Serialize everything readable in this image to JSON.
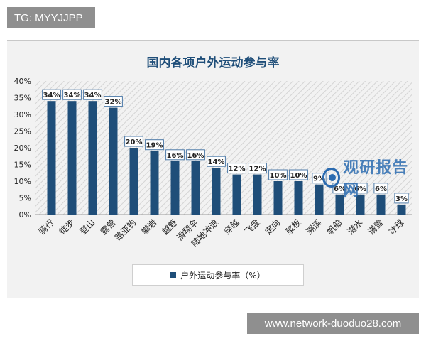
{
  "tag": "TG: MYYJJPP",
  "watermark": "www.network-duoduo28.com",
  "logo_text": "观研报告网",
  "chart_data": {
    "type": "bar",
    "title": "国内各项户外运动参与率",
    "categories": [
      "骑行",
      "徒步",
      "登山",
      "露营",
      "路亚钓",
      "攀岩",
      "越野",
      "滑翔伞",
      "陆地冲浪",
      "穿越",
      "飞盘",
      "定向",
      "浆板",
      "溯溪",
      "帆船",
      "潜水",
      "滑雪",
      "冰球"
    ],
    "values": [
      34,
      34,
      34,
      32,
      20,
      19,
      16,
      16,
      14,
      12,
      12,
      10,
      10,
      9,
      6,
      6,
      6,
      3
    ],
    "data_labels": [
      "34%",
      "34%",
      "34%",
      "32%",
      "20%",
      "19%",
      "16%",
      "16%",
      "14%",
      "12%",
      "12%",
      "10%",
      "10%",
      "9%",
      "6%",
      "6%",
      "6%",
      "3%"
    ],
    "series": [
      {
        "name": "户外运动参与率（%）",
        "values": [
          34,
          34,
          34,
          32,
          20,
          19,
          16,
          16,
          14,
          12,
          12,
          10,
          10,
          9,
          6,
          6,
          6,
          3
        ]
      }
    ],
    "ylim": [
      0,
      40
    ],
    "yticks": [
      "0%",
      "5%",
      "10%",
      "15%",
      "20%",
      "25%",
      "30%",
      "35%",
      "40%"
    ],
    "grid": false,
    "legend_position": "bottom",
    "colors": {
      "bar": "#1f4e79",
      "title": "#1f4e79",
      "hatch": "#d9d9d9"
    }
  }
}
